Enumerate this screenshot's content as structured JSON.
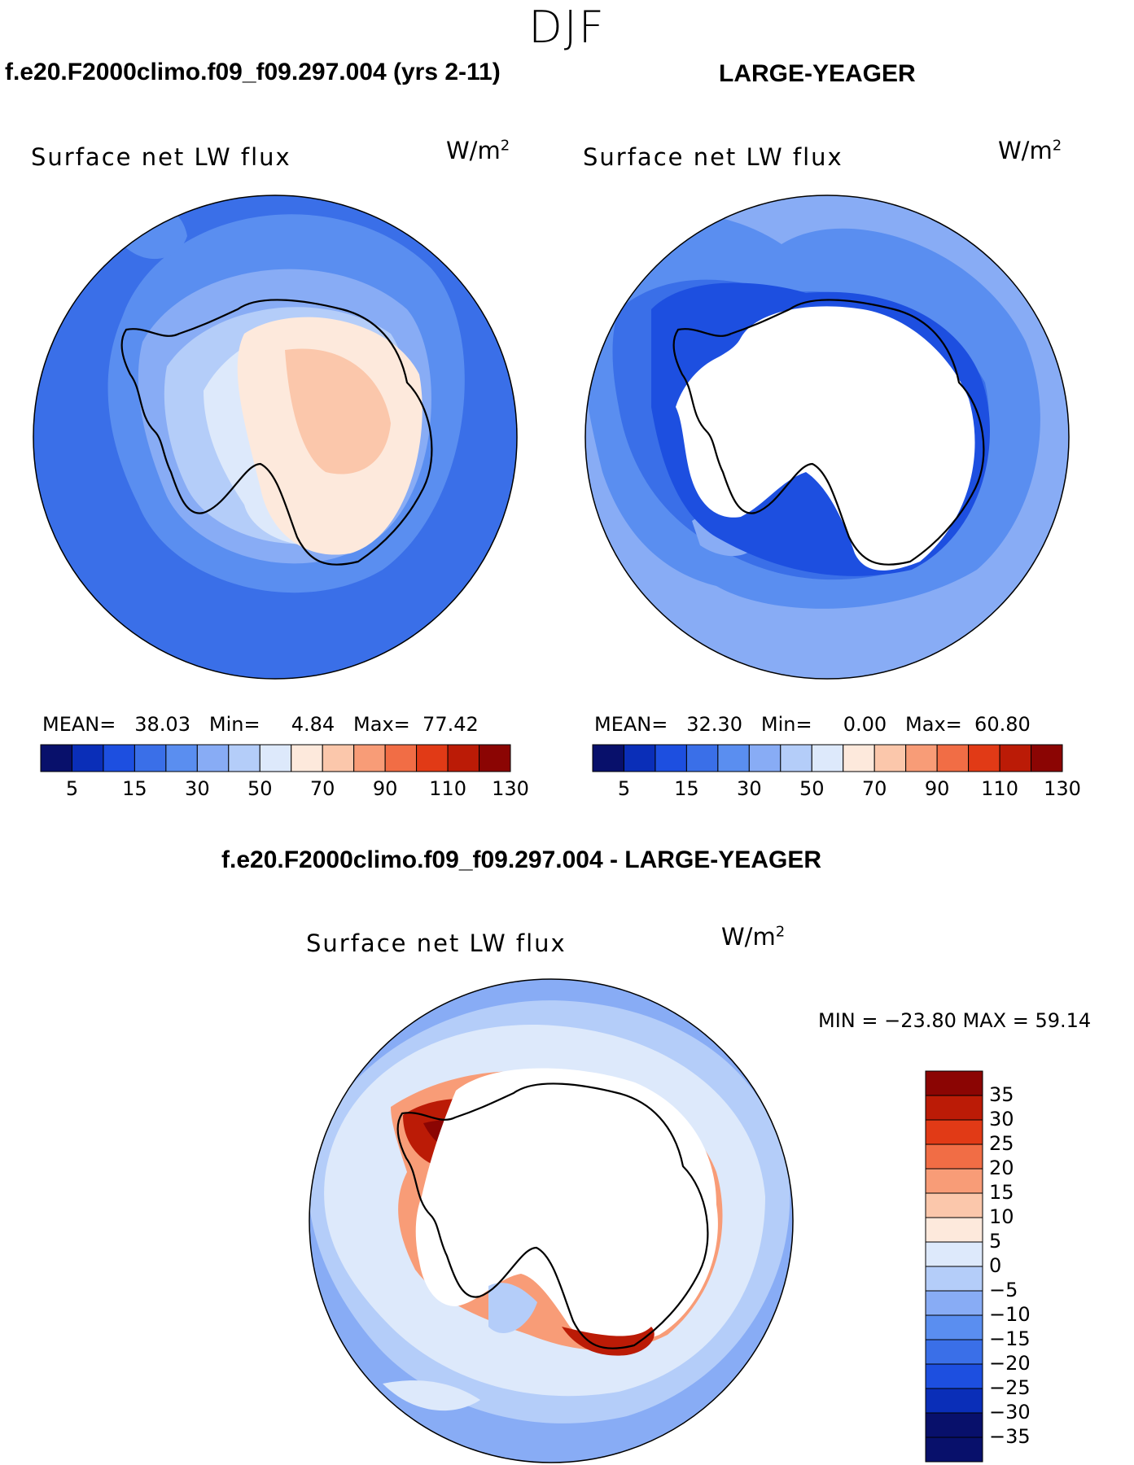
{
  "season": "DJF",
  "panels": [
    {
      "case_title": "f.e20.F2000climo.f09_f09.297.004 (yrs 2-11)",
      "variable": "Surface net LW flux",
      "units": "W/m",
      "units_exp": "2",
      "stats": {
        "mean_label": "MEAN=",
        "mean": "38.03",
        "min_label": "Min=",
        "min": "4.84",
        "max_label": "Max=",
        "max": "77.42"
      }
    },
    {
      "case_title": "LARGE-YEAGER",
      "variable": "Surface net LW flux",
      "units": "W/m",
      "units_exp": "2",
      "stats": {
        "mean_label": "MEAN=",
        "mean": "32.30",
        "min_label": "Min=",
        "min": "0.00",
        "max_label": "Max=",
        "max": "60.80"
      }
    }
  ],
  "diff_panel": {
    "title": "f.e20.F2000climo.f09_f09.297.004 - LARGE-YEAGER",
    "variable": "Surface net LW flux",
    "units": "W/m",
    "units_exp": "2",
    "min_max": "MIN = −23.80 MAX =   59.14"
  },
  "colorbar_abs": {
    "ticks": [
      "5",
      "15",
      "30",
      "50",
      "70",
      "90",
      "110",
      "130"
    ],
    "colors": [
      "#08106b",
      "#0a2eb8",
      "#1d4fe0",
      "#3a6fe8",
      "#5a8ef0",
      "#88acf5",
      "#b4cdf9",
      "#dde9fb",
      "#fde9dc",
      "#fbc7ab",
      "#f89c77",
      "#f16d45",
      "#e13a16",
      "#bb1b06",
      "#8b0503"
    ]
  },
  "colorbar_diff": {
    "ticks": [
      "35",
      "30",
      "25",
      "20",
      "15",
      "10",
      "5",
      "0",
      "−5",
      "−10",
      "−15",
      "−20",
      "−25",
      "−30",
      "−35"
    ],
    "colors": [
      "#8b0503",
      "#bb1b06",
      "#e13a16",
      "#f16d45",
      "#f89c77",
      "#fbc7ab",
      "#fde9dc",
      "#dde9fb",
      "#b4cdf9",
      "#88acf5",
      "#5a8ef0",
      "#3a6fe8",
      "#1d4fe0",
      "#0a2eb8",
      "#08106b",
      "#08106b"
    ]
  }
}
